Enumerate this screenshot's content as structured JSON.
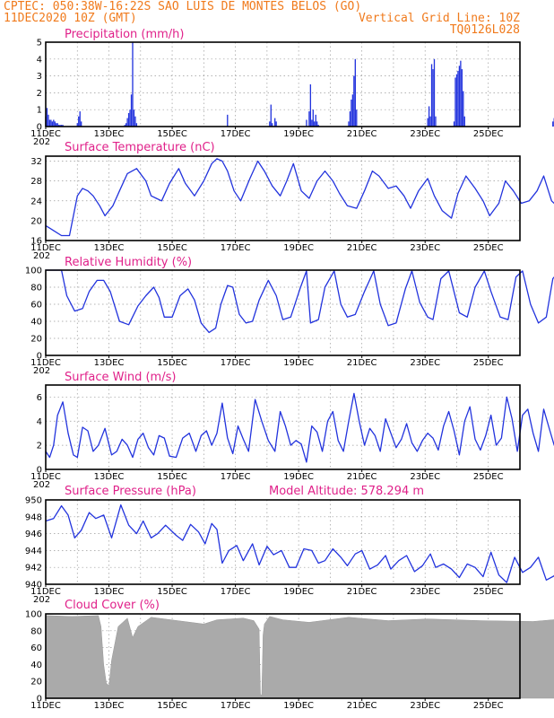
{
  "header": {
    "line1": "CPTEC:  050:38W-16:22S  SAO LUIS DE MONTES BELOS (GO)",
    "date": "11DEC2020 10Z (GMT)",
    "grid_note": "Vertical Grid Line: 10Z",
    "code": "TQ0126L028"
  },
  "colors": {
    "header": "#f07a1c",
    "titles": "#e0218a",
    "series": "#2233dd",
    "cloud": "#aaaaaa",
    "grid": "#9a9a9a"
  },
  "time_axis": {
    "start": "11DEC2020 10Z",
    "hours_shown": 360,
    "labels": [
      "11DEC",
      "13DEC",
      "15DEC",
      "17DEC",
      "19DEC",
      "21DEC",
      "23DEC",
      "25DEC"
    ],
    "label_partial": "202"
  },
  "panels": {
    "precip": {
      "title": "Precipitation (mm/h)"
    },
    "temp": {
      "title": "Surface Temperature (nC)"
    },
    "rh": {
      "title": "Relative Humidity (%)"
    },
    "wind": {
      "title": "Surface Wind (m/s)"
    },
    "pres": {
      "title": "Surface Pressure (hPa)",
      "note": "Model Altitude: 578.294 m"
    },
    "cloud": {
      "title": "Cloud Cover (%)"
    }
  },
  "chart_data": [
    {
      "id": "precip",
      "type": "bar",
      "title": "Precipitation (mm/h)",
      "ylim": [
        0,
        5
      ],
      "yticks": [
        0,
        1,
        2,
        3,
        4,
        5
      ],
      "grid": true,
      "x": [
        0,
        1,
        2,
        3,
        4,
        5,
        6,
        7,
        8,
        9,
        10,
        11,
        12,
        13,
        24,
        25,
        26,
        27,
        60,
        61,
        62,
        63,
        64,
        65,
        66,
        67,
        68,
        69,
        138,
        170,
        171,
        172,
        174,
        175,
        198,
        200,
        201,
        202,
        203,
        204,
        205,
        206,
        207,
        230,
        231,
        232,
        233,
        234,
        235,
        236,
        290,
        291,
        292,
        293,
        294,
        295,
        296,
        310,
        311,
        312,
        313,
        314,
        315,
        316,
        317,
        318,
        385,
        386,
        387,
        388,
        389,
        390,
        391,
        392,
        395,
        424,
        425,
        426,
        427,
        428,
        429,
        430,
        431,
        432,
        433,
        434,
        435,
        436,
        437,
        438,
        439,
        440,
        441
      ],
      "values": [
        0.6,
        1.1,
        0.7,
        0.4,
        0.4,
        0.3,
        0.4,
        0.3,
        0.2,
        0.2,
        0.1,
        0.1,
        0.1,
        0.1,
        0.2,
        0.6,
        0.9,
        0.3,
        0.1,
        0.2,
        0.5,
        0.8,
        1.0,
        1.9,
        5.0,
        1.0,
        0.6,
        0.2,
        0.7,
        0.3,
        1.3,
        0.2,
        0.5,
        0.3,
        0.4,
        0.9,
        2.5,
        0.4,
        1.0,
        0.3,
        0.7,
        0.3,
        0.1,
        0.3,
        0.9,
        1.6,
        1.9,
        3.0,
        4.0,
        1.0,
        0.5,
        1.2,
        0.6,
        3.7,
        3.4,
        4.0,
        0.6,
        0.3,
        2.9,
        3.1,
        3.3,
        3.6,
        3.9,
        3.4,
        2.1,
        0.6,
        0.3,
        0.5,
        0.9,
        1.0,
        0.9,
        0.5,
        0.3,
        0.2,
        0.2,
        0.4,
        0.3,
        0.5,
        0.3,
        0.2,
        0.2,
        0.4,
        0.3,
        0.4,
        0.2,
        0.6,
        0.5,
        1.3,
        0.8,
        0.4,
        0.3,
        0.2,
        0.1
      ]
    },
    {
      "id": "temp",
      "type": "line",
      "title": "Surface Temperature (nC)",
      "ylim": [
        16,
        33
      ],
      "yticks": [
        16,
        20,
        24,
        28,
        32
      ],
      "grid": true,
      "x": [
        0,
        6,
        12,
        18,
        24,
        28,
        32,
        36,
        41,
        45,
        51,
        56,
        62,
        69,
        76,
        80,
        84,
        88,
        94,
        101,
        106,
        113,
        120,
        126,
        130,
        134,
        138,
        143,
        148,
        155,
        161,
        166,
        172,
        178,
        183,
        188,
        194,
        200,
        206,
        212,
        218,
        223,
        229,
        236,
        242,
        248,
        253,
        260,
        266,
        272,
        277,
        283,
        290,
        295,
        301,
        308,
        313,
        319,
        326,
        332,
        337,
        344,
        349,
        355,
        361,
        367,
        373,
        378,
        384,
        390,
        396,
        402,
        408,
        413,
        419,
        425,
        431,
        437,
        442,
        447
      ],
      "values": [
        19,
        18,
        17,
        17,
        25,
        26.5,
        26,
        25,
        23,
        21,
        23,
        26,
        29.5,
        30.5,
        28,
        25,
        24.5,
        24,
        27.5,
        30.5,
        27.5,
        25,
        28,
        31.5,
        32.5,
        32,
        30,
        26,
        24,
        28.5,
        32,
        30,
        27,
        25,
        28,
        31.5,
        26,
        24.5,
        28,
        30,
        28,
        25.5,
        23,
        22.5,
        26,
        30,
        29,
        26.5,
        27,
        25,
        22.5,
        26,
        28.5,
        25,
        22,
        20.5,
        25.5,
        29,
        26.5,
        24,
        21,
        23.5,
        28,
        26,
        23.5,
        24,
        26,
        29,
        24,
        22.5,
        25,
        28,
        30.5,
        28.5,
        24,
        22.5,
        27,
        30,
        27,
        23
      ]
    },
    {
      "id": "rh",
      "type": "line",
      "title": "Relative Humidity (%)",
      "ylim": [
        0,
        100
      ],
      "yticks": [
        0,
        20,
        40,
        60,
        80,
        100
      ],
      "grid": true,
      "x": [
        0,
        6,
        12,
        16,
        22,
        28,
        33,
        39,
        44,
        49,
        56,
        63,
        70,
        76,
        82,
        86,
        90,
        96,
        102,
        108,
        113,
        118,
        124,
        129,
        133,
        138,
        142,
        147,
        152,
        157,
        162,
        169,
        175,
        180,
        186,
        193,
        198,
        201,
        207,
        212,
        219,
        224,
        229,
        235,
        242,
        249,
        254,
        260,
        266,
        273,
        278,
        284,
        290,
        294,
        300,
        306,
        314,
        320,
        326,
        333,
        338,
        345,
        351,
        357,
        362,
        368,
        374,
        380,
        385,
        390,
        396,
        402,
        408,
        413,
        419,
        425,
        431,
        437,
        442,
        447
      ],
      "values": [
        100,
        100,
        100,
        70,
        52,
        55,
        75,
        88,
        88,
        75,
        40,
        36,
        58,
        70,
        80,
        68,
        45,
        45,
        70,
        78,
        65,
        38,
        27,
        32,
        60,
        82,
        80,
        48,
        38,
        40,
        65,
        88,
        70,
        42,
        45,
        78,
        99,
        38,
        42,
        80,
        99,
        60,
        45,
        48,
        75,
        99,
        60,
        35,
        38,
        78,
        99,
        62,
        45,
        42,
        90,
        99,
        50,
        45,
        80,
        99,
        75,
        45,
        42,
        92,
        99,
        60,
        38,
        45,
        90,
        99,
        72,
        45,
        42,
        80,
        99,
        85,
        50,
        40,
        42,
        48
      ]
    },
    {
      "id": "wind",
      "type": "line",
      "title": "Surface Wind (m/s)",
      "ylim": [
        0,
        7
      ],
      "yticks": [
        0,
        2,
        4,
        6
      ],
      "grid": true,
      "x": [
        0,
        3,
        6,
        9,
        13,
        17,
        21,
        24,
        28,
        32,
        36,
        40,
        45,
        50,
        54,
        58,
        62,
        66,
        70,
        74,
        78,
        82,
        86,
        90,
        94,
        99,
        104,
        109,
        114,
        118,
        122,
        126,
        130,
        134,
        138,
        142,
        146,
        150,
        154,
        159,
        164,
        169,
        174,
        178,
        182,
        186,
        190,
        194,
        198,
        202,
        206,
        210,
        214,
        218,
        222,
        226,
        230,
        234,
        238,
        242,
        246,
        250,
        254,
        258,
        262,
        266,
        270,
        274,
        278,
        282,
        286,
        290,
        294,
        298,
        302,
        306,
        310,
        314,
        318,
        322,
        326,
        330,
        334,
        338,
        342,
        346,
        350,
        354,
        358,
        362,
        366,
        370,
        374,
        378,
        382,
        386,
        390,
        394,
        398,
        402,
        406,
        410,
        414,
        418,
        422,
        426,
        430,
        434,
        438,
        442,
        446
      ],
      "values": [
        1.5,
        1.0,
        2.0,
        4.5,
        5.6,
        3.0,
        1.2,
        1.0,
        3.5,
        3.2,
        1.5,
        2.0,
        3.4,
        1.2,
        1.5,
        2.5,
        2.0,
        1.0,
        2.5,
        3.0,
        1.8,
        1.2,
        2.8,
        2.6,
        1.1,
        1.0,
        2.6,
        3.0,
        1.5,
        2.8,
        3.2,
        2.0,
        3.0,
        5.5,
        2.6,
        1.3,
        3.6,
        2.5,
        1.5,
        5.8,
        4.0,
        2.4,
        1.5,
        4.8,
        3.6,
        2.0,
        2.4,
        2.1,
        0.6,
        3.6,
        3.1,
        1.5,
        4.0,
        4.8,
        2.4,
        1.5,
        4.0,
        6.3,
        4.0,
        2.0,
        3.4,
        2.8,
        1.5,
        4.2,
        3.0,
        1.8,
        2.5,
        3.8,
        2.2,
        1.5,
        2.4,
        3.0,
        2.6,
        1.6,
        3.6,
        4.8,
        3.2,
        1.2,
        4.0,
        5.2,
        2.5,
        1.6,
        2.8,
        4.5,
        2.0,
        2.6,
        6.0,
        4.2,
        1.5,
        4.5,
        5.0,
        3.0,
        1.5,
        5.0,
        3.5,
        2.0,
        6.0,
        4.0,
        2.0,
        4.8,
        3.4,
        2.4,
        2.8,
        2.6,
        2.0,
        3.8,
        3.2,
        2.0,
        1.5,
        1.0,
        0.4
      ]
    },
    {
      "id": "pres",
      "type": "line",
      "title": "Surface Pressure (hPa)",
      "ylim": [
        940,
        950
      ],
      "yticks": [
        940,
        942,
        944,
        946,
        948,
        950
      ],
      "grid": true,
      "x": [
        0,
        6,
        12,
        17,
        22,
        27,
        33,
        38,
        44,
        50,
        57,
        63,
        69,
        74,
        80,
        85,
        91,
        99,
        104,
        110,
        116,
        121,
        126,
        130,
        134,
        139,
        145,
        150,
        157,
        162,
        168,
        173,
        179,
        185,
        190,
        196,
        202,
        207,
        212,
        218,
        224,
        229,
        235,
        240,
        246,
        252,
        258,
        262,
        268,
        274,
        280,
        286,
        292,
        296,
        302,
        308,
        314,
        320,
        326,
        332,
        338,
        344,
        350,
        356,
        362,
        368,
        374,
        380,
        386,
        392,
        398,
        404,
        410,
        416,
        422,
        428,
        434,
        440,
        446
      ],
      "values": [
        947.5,
        947.8,
        949.3,
        948.2,
        945.5,
        946.4,
        948.5,
        947.8,
        948.2,
        945.5,
        949.4,
        947,
        946,
        947.5,
        945.5,
        946,
        947,
        945.8,
        945.2,
        947.1,
        946.2,
        944.8,
        947.2,
        946.5,
        942.5,
        944,
        944.6,
        942.8,
        944.8,
        942.3,
        944.5,
        943.5,
        944,
        942,
        942,
        944.2,
        944,
        942.5,
        942.8,
        944.2,
        943.2,
        942.2,
        943.6,
        944,
        941.8,
        942.3,
        943.4,
        941.8,
        942.8,
        943.4,
        941.5,
        942.2,
        943.6,
        942,
        942.4,
        941.8,
        940.8,
        942.4,
        942,
        940.9,
        943.8,
        941.1,
        940.2,
        943.2,
        941.4,
        942,
        943.2,
        940.5,
        941,
        943.5,
        940.4,
        941.6,
        943.3,
        940.6,
        941.4,
        943.3,
        940.2,
        940,
        942
      ]
    },
    {
      "id": "cloud",
      "type": "area",
      "title": "Cloud Cover (%)",
      "ylim": [
        0,
        100
      ],
      "yticks": [
        0,
        20,
        40,
        60,
        80,
        100
      ],
      "grid": true,
      "x": [
        0,
        20,
        40,
        42,
        44,
        46,
        48,
        50,
        55,
        62,
        66,
        70,
        80,
        110,
        120,
        130,
        150,
        158,
        162,
        163,
        164,
        165,
        166,
        170,
        180,
        200,
        230,
        260,
        290,
        330,
        370,
        400,
        430,
        447
      ],
      "values": [
        98,
        97,
        98,
        85,
        40,
        18,
        15,
        45,
        85,
        95,
        72,
        85,
        96,
        90,
        88,
        93,
        95,
        92,
        82,
        5,
        3,
        75,
        88,
        97,
        93,
        90,
        96,
        92,
        94,
        92,
        91,
        95,
        93,
        97
      ]
    }
  ]
}
